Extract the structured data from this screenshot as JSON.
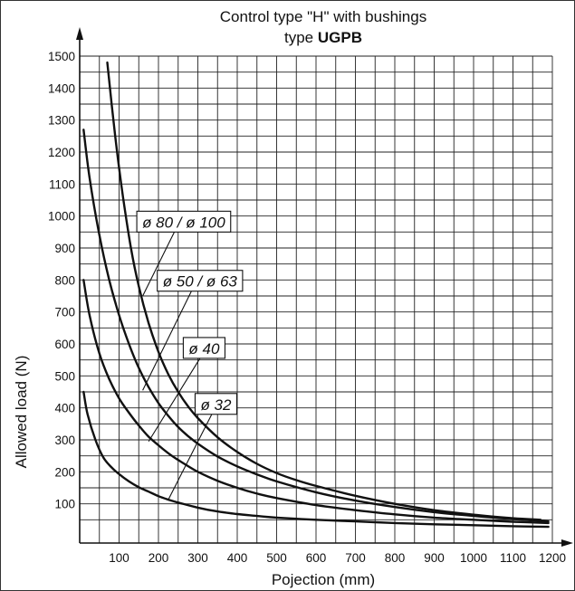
{
  "chart_data": {
    "type": "line",
    "title_line1": "Control type \"H\" with bushings",
    "title_line2_prefix": "type ",
    "title_line2_bold": "UGPB",
    "xlabel": "Pojection (mm)",
    "ylabel": "Allowed load (N)",
    "xlim": [
      0,
      1200
    ],
    "ylim": [
      0,
      1500
    ],
    "xticks": [
      100,
      200,
      300,
      400,
      500,
      600,
      700,
      800,
      900,
      1000,
      1100,
      1200
    ],
    "yticks": [
      100,
      200,
      300,
      400,
      500,
      600,
      700,
      800,
      900,
      1000,
      1100,
      1200,
      1300,
      1400,
      1500
    ],
    "grid": true,
    "series": [
      {
        "name": "ø 32",
        "points": [
          [
            10,
            450
          ],
          [
            20,
            380
          ],
          [
            40,
            300
          ],
          [
            60,
            245
          ],
          [
            80,
            215
          ],
          [
            100,
            193
          ],
          [
            125,
            170
          ],
          [
            150,
            152
          ],
          [
            175,
            138
          ],
          [
            200,
            124
          ],
          [
            225,
            113
          ],
          [
            250,
            104
          ],
          [
            300,
            88
          ],
          [
            350,
            76
          ],
          [
            400,
            68
          ],
          [
            450,
            62
          ],
          [
            500,
            57
          ],
          [
            600,
            50
          ],
          [
            700,
            45
          ],
          [
            800,
            40
          ],
          [
            900,
            36
          ],
          [
            1000,
            33
          ],
          [
            1100,
            30
          ],
          [
            1190,
            28
          ]
        ]
      },
      {
        "name": "ø 40",
        "points": [
          [
            10,
            800
          ],
          [
            25,
            690
          ],
          [
            50,
            570
          ],
          [
            75,
            490
          ],
          [
            100,
            430
          ],
          [
            125,
            385
          ],
          [
            150,
            345
          ],
          [
            175,
            310
          ],
          [
            200,
            283
          ],
          [
            225,
            258
          ],
          [
            250,
            237
          ],
          [
            275,
            218
          ],
          [
            300,
            200
          ],
          [
            350,
            172
          ],
          [
            400,
            150
          ],
          [
            450,
            132
          ],
          [
            500,
            118
          ],
          [
            600,
            96
          ],
          [
            700,
            80
          ],
          [
            800,
            67
          ],
          [
            900,
            57
          ],
          [
            1000,
            50
          ],
          [
            1100,
            44
          ],
          [
            1190,
            40
          ]
        ]
      },
      {
        "name": "ø 50 / ø 63",
        "points": [
          [
            10,
            1270
          ],
          [
            25,
            1120
          ],
          [
            50,
            940
          ],
          [
            75,
            800
          ],
          [
            100,
            690
          ],
          [
            125,
            600
          ],
          [
            150,
            525
          ],
          [
            175,
            465
          ],
          [
            200,
            415
          ],
          [
            225,
            375
          ],
          [
            250,
            340
          ],
          [
            275,
            312
          ],
          [
            300,
            288
          ],
          [
            350,
            248
          ],
          [
            400,
            217
          ],
          [
            450,
            192
          ],
          [
            500,
            170
          ],
          [
            600,
            136
          ],
          [
            700,
            110
          ],
          [
            800,
            90
          ],
          [
            900,
            74
          ],
          [
            1000,
            62
          ],
          [
            1100,
            52
          ],
          [
            1190,
            45
          ]
        ]
      },
      {
        "name": "ø 80 / ø 100",
        "points": [
          [
            70,
            1480
          ],
          [
            90,
            1250
          ],
          [
            110,
            1060
          ],
          [
            130,
            900
          ],
          [
            150,
            780
          ],
          [
            175,
            665
          ],
          [
            200,
            575
          ],
          [
            225,
            505
          ],
          [
            250,
            450
          ],
          [
            275,
            405
          ],
          [
            300,
            368
          ],
          [
            350,
            308
          ],
          [
            400,
            262
          ],
          [
            450,
            225
          ],
          [
            500,
            196
          ],
          [
            550,
            174
          ],
          [
            600,
            156
          ],
          [
            700,
            125
          ],
          [
            800,
            100
          ],
          [
            900,
            80
          ],
          [
            1000,
            66
          ],
          [
            1100,
            55
          ],
          [
            1170,
            50
          ]
        ]
      }
    ],
    "annotations": [
      {
        "text": "ø 80 / ø 100",
        "x": 145,
        "y": 1015,
        "target": [
          160,
          750
        ]
      },
      {
        "text": "ø 50 / ø 63",
        "x": 197,
        "y": 830,
        "target": [
          160,
          455
        ]
      },
      {
        "text": "ø 40",
        "x": 263,
        "y": 620,
        "target": [
          175,
          295
        ]
      },
      {
        "text": "ø 32",
        "x": 293,
        "y": 445,
        "target": [
          225,
          113
        ]
      }
    ]
  }
}
